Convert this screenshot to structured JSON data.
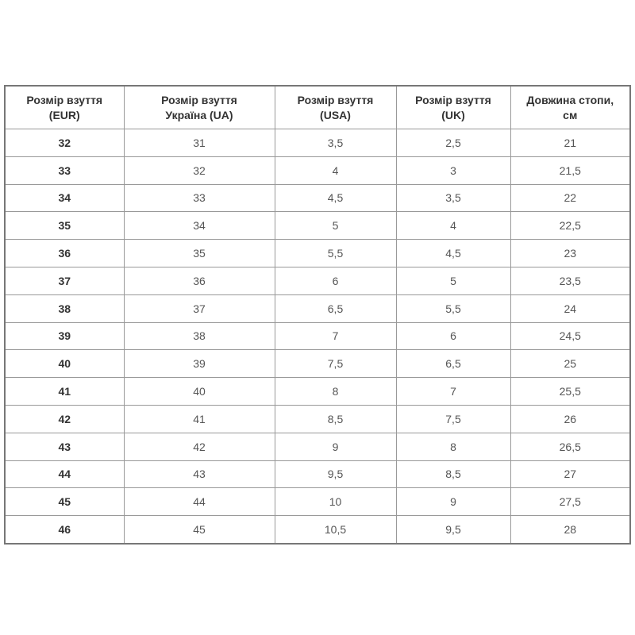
{
  "colors": {
    "outer_border": "#777777",
    "inner_border": "#999999",
    "header_text": "#333333",
    "body_text": "#555555",
    "background": "#ffffff"
  },
  "table": {
    "headers": [
      {
        "line1": "Розмір взуття",
        "line2": "(EUR)"
      },
      {
        "line1": "Розмір взуття",
        "line2": "Україна (UA)"
      },
      {
        "line1": "Розмір взуття",
        "line2": "(USA)"
      },
      {
        "line1": "Розмір взуття",
        "line2": "(UK)"
      },
      {
        "line1": "Довжина стопи,",
        "line2": "см"
      }
    ],
    "rows": [
      [
        "32",
        "31",
        "3,5",
        "2,5",
        "21"
      ],
      [
        "33",
        "32",
        "4",
        "3",
        "21,5"
      ],
      [
        "34",
        "33",
        "4,5",
        "3,5",
        "22"
      ],
      [
        "35",
        "34",
        "5",
        "4",
        "22,5"
      ],
      [
        "36",
        "35",
        "5,5",
        "4,5",
        "23"
      ],
      [
        "37",
        "36",
        "6",
        "5",
        "23,5"
      ],
      [
        "38",
        "37",
        "6,5",
        "5,5",
        "24"
      ],
      [
        "39",
        "38",
        "7",
        "6",
        "24,5"
      ],
      [
        "40",
        "39",
        "7,5",
        "6,5",
        "25"
      ],
      [
        "41",
        "40",
        "8",
        "7",
        "25,5"
      ],
      [
        "42",
        "41",
        "8,5",
        "7,5",
        "26"
      ],
      [
        "43",
        "42",
        "9",
        "8",
        "26,5"
      ],
      [
        "44",
        "43",
        "9,5",
        "8,5",
        "27"
      ],
      [
        "45",
        "44",
        "10",
        "9",
        "27,5"
      ],
      [
        "46",
        "45",
        "10,5",
        "9,5",
        "28"
      ]
    ]
  }
}
